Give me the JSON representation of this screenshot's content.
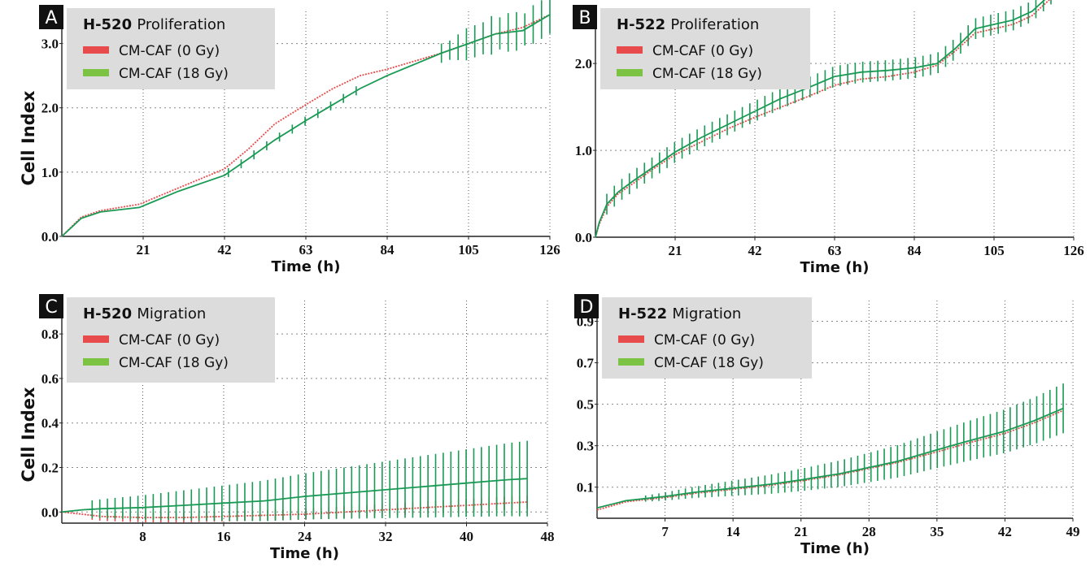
{
  "colors": {
    "red": "#e84b4b",
    "green": "#1a9a55",
    "legend_green": "#7cc243",
    "legend_bg": "#dcdcdc",
    "letter_bg": "#111111"
  },
  "y_axis_label": "Cell Index",
  "chart_data": [
    {
      "panel": "A",
      "type": "line",
      "title_bold": "H-520",
      "title": "Proliferation",
      "xlabel": "Time (h)",
      "ylabel": "Cell Index",
      "xlim": [
        0,
        126
      ],
      "ylim": [
        0,
        3.5
      ],
      "xticks": [
        "21",
        "42",
        "63",
        "84",
        "105",
        "126"
      ],
      "yticks": [
        "0.0",
        "1.0",
        "2.0",
        "3.0"
      ],
      "legend": [
        "CM-CAF (0 Gy)",
        "CM-CAF (18 Gy)"
      ],
      "series": [
        {
          "name": "CM-CAF (0 Gy)",
          "x": [
            0,
            5,
            10,
            20,
            24,
            30,
            42,
            48,
            55,
            63,
            70,
            77,
            84,
            98,
            105,
            112,
            119,
            126
          ],
          "y": [
            0,
            0.3,
            0.4,
            0.5,
            0.6,
            0.75,
            1.05,
            1.35,
            1.75,
            2.05,
            2.3,
            2.5,
            2.6,
            2.85,
            3.0,
            3.15,
            3.25,
            3.45
          ]
        },
        {
          "name": "CM-CAF (18 Gy)",
          "x": [
            0,
            5,
            10,
            20,
            24,
            30,
            42,
            48,
            55,
            63,
            70,
            77,
            84,
            98,
            105,
            112,
            119,
            126
          ],
          "y": [
            0,
            0.28,
            0.38,
            0.45,
            0.55,
            0.7,
            0.95,
            1.2,
            1.5,
            1.8,
            2.05,
            2.3,
            2.5,
            2.85,
            3.0,
            3.15,
            3.2,
            3.45
          ]
        }
      ],
      "error_bars": {
        "series": 1,
        "x_range": [
          98,
          126
        ],
        "count": 14,
        "half": [
          0.15,
          0.15,
          0.2,
          0.25,
          0.25,
          0.25,
          0.3,
          0.25,
          0.3,
          0.3,
          0.25,
          0.3,
          0.3,
          0.3
        ]
      },
      "marker_bars": {
        "series": 1,
        "x_range": [
          43,
          76
        ],
        "count": 11,
        "half": 0.07
      }
    },
    {
      "panel": "B",
      "type": "line",
      "title_bold": "H-522",
      "title": "Proliferation",
      "xlabel": "Time (h)",
      "ylabel": "",
      "xlim": [
        0,
        126
      ],
      "ylim": [
        0,
        2.6
      ],
      "xticks": [
        "21",
        "42",
        "63",
        "84",
        "105",
        "126"
      ],
      "yticks": [
        "0.0",
        "1.0",
        "2.0"
      ],
      "legend": [
        "CM-CAF (0 Gy)",
        "CM-CAF (18 Gy)"
      ],
      "series": [
        {
          "name": "CM-CAF (0 Gy)",
          "x": [
            0,
            1,
            3,
            6,
            10,
            15,
            21,
            28,
            35,
            42,
            49,
            56,
            63,
            70,
            77,
            84,
            90,
            95,
            100,
            105,
            110,
            115,
            120
          ],
          "y": [
            0,
            0.15,
            0.35,
            0.5,
            0.62,
            0.78,
            0.95,
            1.1,
            1.25,
            1.38,
            1.5,
            1.62,
            1.75,
            1.82,
            1.85,
            1.9,
            1.98,
            2.15,
            2.35,
            2.4,
            2.45,
            2.55,
            2.75
          ]
        },
        {
          "name": "CM-CAF (18 Gy)",
          "x": [
            0,
            1,
            3,
            6,
            10,
            15,
            21,
            28,
            35,
            42,
            49,
            56,
            63,
            70,
            77,
            84,
            90,
            95,
            100,
            105,
            110,
            115,
            120
          ],
          "y": [
            0,
            0.17,
            0.38,
            0.52,
            0.65,
            0.8,
            0.98,
            1.15,
            1.3,
            1.45,
            1.6,
            1.72,
            1.85,
            1.9,
            1.92,
            1.95,
            2.0,
            2.18,
            2.4,
            2.45,
            2.5,
            2.6,
            2.8
          ]
        }
      ],
      "error_bars": {
        "series": 1,
        "x_range": [
          3,
          120
        ],
        "count": 60,
        "half": 0.12
      }
    },
    {
      "panel": "C",
      "type": "line",
      "title_bold": "H-520",
      "title": "Migration",
      "xlabel": "Time (h)",
      "ylabel": "Cell Index",
      "xlim": [
        0,
        48
      ],
      "ylim": [
        -0.05,
        0.95
      ],
      "xticks": [
        "8",
        "16",
        "24",
        "32",
        "40",
        "48"
      ],
      "yticks": [
        "0.0",
        "0.2",
        "0.4",
        "0.6",
        "0.8"
      ],
      "legend": [
        "CM-CAF (0 Gy)",
        "CM-CAF (18 Gy)"
      ],
      "series": [
        {
          "name": "CM-CAF (0 Gy)",
          "x": [
            0,
            2,
            4,
            8,
            12,
            16,
            20,
            24,
            28,
            32,
            36,
            40,
            44,
            46
          ],
          "y": [
            0,
            -0.01,
            -0.02,
            -0.025,
            -0.025,
            -0.02,
            -0.015,
            -0.01,
            0.0,
            0.01,
            0.02,
            0.03,
            0.04,
            0.045
          ]
        },
        {
          "name": "CM-CAF (18 Gy)",
          "x": [
            0,
            2,
            4,
            8,
            12,
            16,
            20,
            24,
            28,
            32,
            36,
            40,
            44,
            46
          ],
          "y": [
            0,
            0.01,
            0.015,
            0.02,
            0.03,
            0.04,
            0.05,
            0.07,
            0.085,
            0.1,
            0.115,
            0.13,
            0.145,
            0.15
          ]
        }
      ],
      "error_bars": {
        "series": 1,
        "x_range": [
          3,
          46
        ],
        "count": 58,
        "half_start": 0.04,
        "half_end": 0.17
      },
      "error_bars_2": {
        "series": 0,
        "x_range": [
          3,
          46
        ],
        "count": 58,
        "half_start": 0.02,
        "half_end": 0.03
      }
    },
    {
      "panel": "D",
      "type": "line",
      "title_bold": "H-522",
      "title": "Migration",
      "xlabel": "Time (h)",
      "ylabel": "",
      "xlim": [
        0,
        49
      ],
      "ylim": [
        -0.05,
        1.0
      ],
      "xticks": [
        "7",
        "14",
        "21",
        "28",
        "35",
        "42",
        "49"
      ],
      "yticks": [
        "0.1",
        "0.3",
        "0.5",
        "0.7",
        "0.9"
      ],
      "legend": [
        "CM-CAF (0 Gy)",
        "CM-CAF (18 Gy)"
      ],
      "series": [
        {
          "name": "CM-CAF (0 Gy)",
          "x": [
            0,
            3,
            7,
            10,
            14,
            18,
            21,
            25,
            28,
            31,
            35,
            38,
            42,
            45,
            48
          ],
          "y": [
            -0.01,
            0.03,
            0.05,
            0.07,
            0.09,
            0.11,
            0.13,
            0.16,
            0.19,
            0.22,
            0.27,
            0.31,
            0.36,
            0.41,
            0.47
          ]
        },
        {
          "name": "CM-CAF (18 Gy)",
          "x": [
            0,
            3,
            7,
            10,
            14,
            18,
            21,
            25,
            28,
            31,
            35,
            38,
            42,
            45,
            48
          ],
          "y": [
            0,
            0.035,
            0.055,
            0.075,
            0.095,
            0.115,
            0.135,
            0.165,
            0.195,
            0.225,
            0.28,
            0.32,
            0.37,
            0.42,
            0.48
          ]
        }
      ],
      "error_bars": {
        "series": 1,
        "x_range": [
          5,
          48
        ],
        "count": 64,
        "half_start": 0.015,
        "half_end": 0.12
      }
    }
  ]
}
